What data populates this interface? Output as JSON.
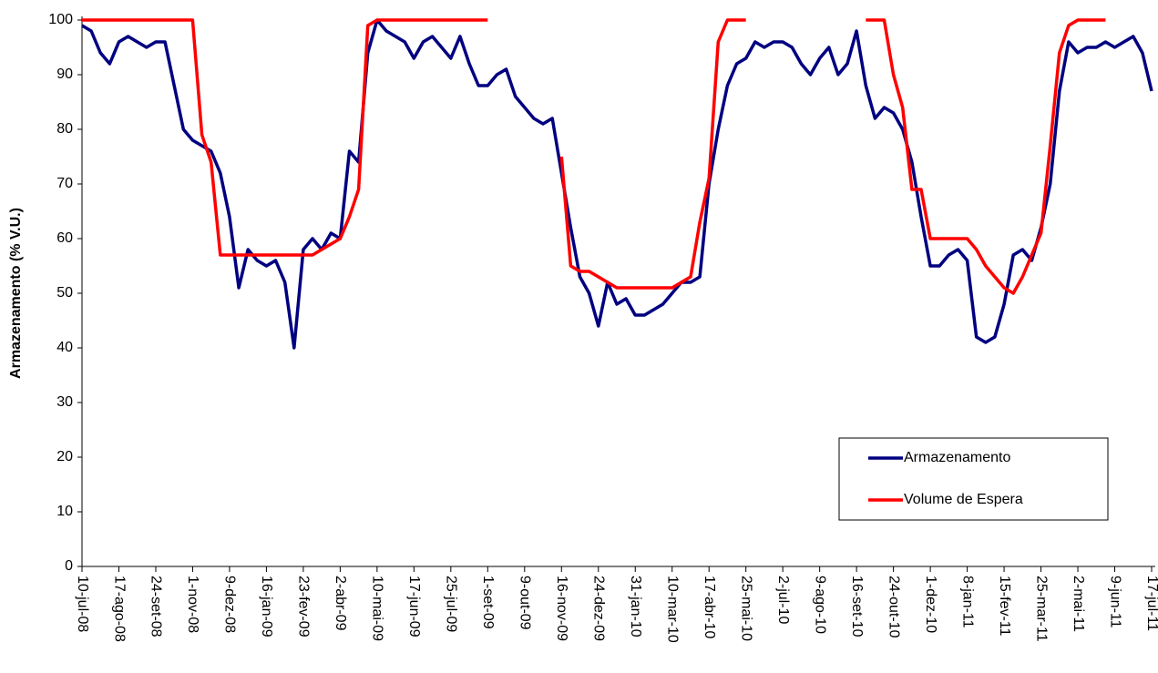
{
  "chart_data": {
    "type": "line",
    "y_label": "Armazenamento (% V.U.)",
    "categories": [
      "10-jul-08",
      null,
      null,
      null,
      "17-ago-08",
      null,
      null,
      null,
      "24-set-08",
      null,
      null,
      null,
      "1-nov-08",
      null,
      null,
      null,
      "9-dez-08",
      null,
      null,
      null,
      "16-jan-09",
      null,
      null,
      null,
      "23-fev-09",
      null,
      null,
      null,
      "2-abr-09",
      null,
      null,
      null,
      "10-mai-09",
      null,
      null,
      null,
      "17-jun-09",
      null,
      null,
      null,
      "25-jul-09",
      null,
      null,
      null,
      "1-set-09",
      null,
      null,
      null,
      "9-out-09",
      null,
      null,
      null,
      "16-nov-09",
      null,
      null,
      null,
      "24-dez-09",
      null,
      null,
      null,
      "31-jan-10",
      null,
      null,
      null,
      "10-mar-10",
      null,
      null,
      null,
      "17-abr-10",
      null,
      null,
      null,
      "25-mai-10",
      null,
      null,
      null,
      "2-jul-10",
      null,
      null,
      null,
      "9-ago-10",
      null,
      null,
      null,
      "16-set-10",
      null,
      null,
      null,
      "24-out-10",
      null,
      null,
      null,
      "1-dez-10",
      null,
      null,
      null,
      "8-jan-11",
      null,
      null,
      null,
      "15-fev-11",
      null,
      null,
      null,
      "25-mar-11",
      null,
      null,
      null,
      "2-mai-11",
      null,
      null,
      null,
      "9-jun-11",
      null,
      null,
      null,
      "17-jul-11"
    ],
    "series": [
      {
        "name": "Armazenamento",
        "color": "#000080",
        "values": [
          99,
          98,
          94,
          92,
          96,
          97,
          96,
          95,
          96,
          96,
          88,
          80,
          78,
          77,
          76,
          72,
          64,
          51,
          58,
          56,
          55,
          56,
          52,
          40,
          58,
          60,
          58,
          61,
          60,
          76,
          74,
          94,
          100,
          98,
          97,
          96,
          93,
          96,
          97,
          95,
          93,
          97,
          92,
          88,
          88,
          90,
          91,
          86,
          84,
          82,
          81,
          82,
          72,
          62,
          53,
          50,
          44,
          52,
          48,
          49,
          46,
          46,
          47,
          48,
          50,
          52,
          52,
          53,
          70,
          80,
          88,
          92,
          93,
          96,
          95,
          96,
          96,
          95,
          92,
          90,
          93,
          95,
          90,
          92,
          98,
          88,
          82,
          84,
          83,
          80,
          74,
          64,
          55,
          55,
          57,
          58,
          56,
          42,
          41,
          42,
          48,
          57,
          58,
          56,
          62,
          70,
          87,
          96,
          94,
          95,
          95,
          96,
          95,
          96,
          97,
          94,
          87
        ]
      },
      {
        "name": "Volume de Espera",
        "color": "#ff0000",
        "values": [
          100,
          100,
          100,
          100,
          100,
          100,
          100,
          100,
          100,
          100,
          100,
          100,
          100,
          79,
          74,
          57,
          57,
          57,
          57,
          57,
          57,
          57,
          57,
          57,
          57,
          57,
          58,
          59,
          60,
          64,
          69,
          99,
          100,
          100,
          100,
          100,
          100,
          100,
          100,
          100,
          100,
          100,
          100,
          100,
          100,
          null,
          null,
          null,
          null,
          null,
          null,
          null,
          75,
          55,
          54,
          54,
          53,
          52,
          51,
          51,
          51,
          51,
          51,
          51,
          51,
          52,
          53,
          63,
          71,
          96,
          100,
          100,
          100,
          null,
          null,
          null,
          null,
          null,
          null,
          null,
          null,
          null,
          null,
          null,
          null,
          100,
          100,
          100,
          90,
          84,
          69,
          69,
          60,
          60,
          60,
          60,
          60,
          58,
          55,
          53,
          51,
          50,
          53,
          57,
          61,
          77,
          94,
          99,
          100,
          100,
          100,
          100,
          null,
          null,
          null,
          null,
          null
        ]
      }
    ],
    "ylim": [
      0,
      100
    ],
    "yticks": [
      0,
      10,
      20,
      30,
      40,
      50,
      60,
      70,
      80,
      90,
      100
    ],
    "grid": false,
    "legend": "lower right"
  }
}
